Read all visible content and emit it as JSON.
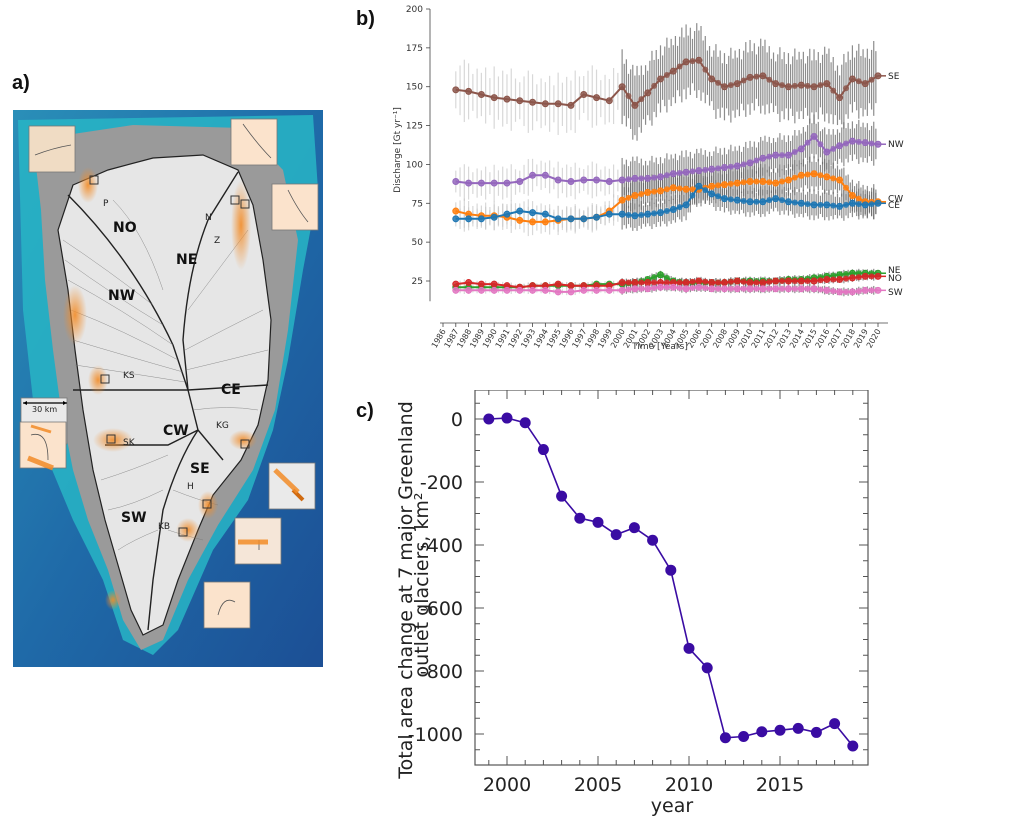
{
  "panels": {
    "a": "a)",
    "b": "b)",
    "c": "c)"
  },
  "map": {
    "regions": [
      "NO",
      "NE",
      "NW",
      "CE",
      "CW",
      "SE",
      "SW"
    ],
    "glaciers": [
      "P",
      "N",
      "Z",
      "KS",
      "SK",
      "KG",
      "H",
      "KB"
    ],
    "scale_bar": "30 km",
    "colors": {
      "ocean_deep": "#1f5a9e",
      "ocean_shelf": "#27b3c4",
      "ice": "#e6e6e6",
      "retreat": "#f28c28"
    }
  },
  "chart_data": [
    {
      "type": "line",
      "title": "",
      "xlabel": "Time [Years]",
      "ylabel": "Discharge [Gt yr⁻¹]",
      "xlim": [
        1986,
        2020
      ],
      "ylim": [
        10,
        200
      ],
      "yticks": [
        25,
        50,
        75,
        100,
        125,
        150,
        175,
        200
      ],
      "xticks": [
        "1986",
        "1987",
        "1988",
        "1989",
        "1990",
        "1991",
        "1992",
        "1993",
        "1994",
        "1995",
        "1996",
        "1997",
        "1998",
        "1999",
        "2000",
        "2001",
        "2002",
        "2003",
        "2004",
        "2005",
        "2006",
        "2007",
        "2008",
        "2009",
        "2010",
        "2011",
        "2012",
        "2013",
        "2014",
        "2015",
        "2016",
        "2017",
        "2018",
        "2019",
        "2020"
      ],
      "legend": "right-end labels",
      "grid": false,
      "series": [
        {
          "name": "SE",
          "color": "#8c564b",
          "x": [
            1987,
            1988,
            1989,
            1990,
            1991,
            1992,
            1993,
            1994,
            1995,
            1996,
            1997,
            1998,
            1999,
            2000,
            2001,
            2002,
            2003,
            2004,
            2005,
            2006,
            2007,
            2008,
            2009,
            2010,
            2011,
            2012,
            2013,
            2014,
            2015,
            2016,
            2017,
            2018,
            2019,
            2020
          ],
          "values": [
            148,
            147,
            145,
            143,
            142,
            141,
            140,
            139,
            139,
            138,
            145,
            143,
            141,
            150,
            138,
            146,
            155,
            160,
            166,
            167,
            155,
            150,
            152,
            156,
            157,
            152,
            150,
            151,
            150,
            152,
            143,
            155,
            152,
            157
          ]
        },
        {
          "name": "NW",
          "color": "#9467bd",
          "x": [
            1987,
            1988,
            1989,
            1990,
            1991,
            1992,
            1993,
            1994,
            1995,
            1996,
            1997,
            1998,
            1999,
            2000,
            2001,
            2002,
            2003,
            2004,
            2005,
            2006,
            2007,
            2008,
            2009,
            2010,
            2011,
            2012,
            2013,
            2014,
            2015,
            2016,
            2017,
            2018,
            2019,
            2020
          ],
          "values": [
            89,
            88,
            88,
            88,
            88,
            89,
            93,
            93,
            90,
            89,
            90,
            90,
            89,
            90,
            91,
            91,
            92,
            94,
            95,
            96,
            97,
            98,
            99,
            101,
            104,
            106,
            106,
            110,
            118,
            108,
            112,
            115,
            114,
            113
          ]
        },
        {
          "name": "CW",
          "color": "#ff7f0e",
          "x": [
            1987,
            1988,
            1989,
            1990,
            1991,
            1992,
            1993,
            1994,
            1995,
            1996,
            1997,
            1998,
            1999,
            2000,
            2001,
            2002,
            2003,
            2004,
            2005,
            2006,
            2007,
            2008,
            2009,
            2010,
            2011,
            2012,
            2013,
            2014,
            2015,
            2016,
            2017,
            2018,
            2019,
            2020
          ],
          "values": [
            70,
            68,
            67,
            67,
            66,
            64,
            63,
            63,
            64,
            65,
            65,
            66,
            70,
            77,
            80,
            82,
            83,
            85,
            84,
            84,
            86,
            87,
            88,
            89,
            89,
            88,
            90,
            93,
            94,
            92,
            90,
            80,
            76,
            76
          ]
        },
        {
          "name": "CE",
          "color": "#1f77b4",
          "x": [
            1987,
            1988,
            1989,
            1990,
            1991,
            1992,
            1993,
            1994,
            1995,
            1996,
            1997,
            1998,
            1999,
            2000,
            2001,
            2002,
            2003,
            2004,
            2005,
            2006,
            2007,
            2008,
            2009,
            2010,
            2011,
            2012,
            2013,
            2014,
            2015,
            2016,
            2017,
            2018,
            2019,
            2020
          ],
          "values": [
            65,
            65,
            65,
            66,
            68,
            70,
            69,
            68,
            65,
            65,
            65,
            66,
            68,
            68,
            67,
            68,
            69,
            71,
            74,
            86,
            81,
            78,
            77,
            76,
            76,
            78,
            76,
            75,
            74,
            74,
            73,
            75,
            74,
            75
          ]
        },
        {
          "name": "NE",
          "color": "#2ca02c",
          "x": [
            1987,
            1988,
            1989,
            1990,
            1991,
            1992,
            1993,
            1994,
            1995,
            1996,
            1997,
            1998,
            1999,
            2000,
            2001,
            2002,
            2003,
            2004,
            2005,
            2006,
            2007,
            2008,
            2009,
            2010,
            2011,
            2012,
            2013,
            2014,
            2015,
            2016,
            2017,
            2018,
            2019,
            2020
          ],
          "values": [
            21,
            21,
            21,
            21,
            21,
            21,
            22,
            22,
            22,
            22,
            22,
            23,
            23,
            23,
            24,
            26,
            29,
            25,
            24,
            24,
            24,
            24,
            25,
            25,
            25,
            25,
            26,
            26,
            27,
            28,
            29,
            30,
            30,
            30
          ]
        },
        {
          "name": "NO",
          "color": "#d62728",
          "x": [
            1987,
            1988,
            1989,
            1990,
            1991,
            1992,
            1993,
            1994,
            1995,
            1996,
            1997,
            1998,
            1999,
            2000,
            2001,
            2002,
            2003,
            2004,
            2005,
            2006,
            2007,
            2008,
            2009,
            2010,
            2011,
            2012,
            2013,
            2014,
            2015,
            2016,
            2017,
            2018,
            2019,
            2020
          ],
          "values": [
            23,
            24,
            23,
            23,
            22,
            21,
            22,
            22,
            23,
            22,
            22,
            22,
            22,
            24,
            24,
            24,
            24,
            24,
            24,
            25,
            24,
            24,
            25,
            24,
            24,
            25,
            25,
            25,
            25,
            26,
            26,
            27,
            28,
            28
          ]
        },
        {
          "name": "SW",
          "color": "#e377c2",
          "x": [
            1987,
            1988,
            1989,
            1990,
            1991,
            1992,
            1993,
            1994,
            1995,
            1996,
            1997,
            1998,
            1999,
            2000,
            2001,
            2002,
            2003,
            2004,
            2005,
            2006,
            2007,
            2008,
            2009,
            2010,
            2011,
            2012,
            2013,
            2014,
            2015,
            2016,
            2017,
            2018,
            2019,
            2020
          ],
          "values": [
            19,
            19,
            19,
            19,
            19,
            19,
            19,
            19,
            18,
            18,
            19,
            19,
            19,
            19,
            20,
            20,
            21,
            21,
            20,
            21,
            20,
            20,
            20,
            20,
            20,
            20,
            20,
            20,
            20,
            19,
            18,
            18,
            19,
            19
          ]
        }
      ]
    },
    {
      "type": "line",
      "title": "",
      "xlabel": "year",
      "ylabel_line1": "Total area change at 7 major Greenland",
      "ylabel_line2": "outlet glaciers, km²",
      "xlim": [
        1998.3,
        2019.8
      ],
      "ylim": [
        -1100,
        100
      ],
      "xticks": [
        "2000",
        "2005",
        "2010",
        "2015"
      ],
      "yticks": [
        "0",
        "-200",
        "-400",
        "-600",
        "-800",
        "-1000"
      ],
      "ytick_values": [
        0,
        -200,
        -400,
        -600,
        -800,
        -1000
      ],
      "xtick_values": [
        2000,
        2005,
        2010,
        2015
      ],
      "grid": false,
      "series": [
        {
          "name": "area change",
          "color": "#3a0ca3",
          "x": [
            1999,
            2000,
            2001,
            2002,
            2003,
            2004,
            2005,
            2006,
            2007,
            2008,
            2009,
            2010,
            2011,
            2012,
            2013,
            2014,
            2015,
            2016,
            2017,
            2018,
            2019
          ],
          "values": [
            0,
            3,
            -12,
            -97,
            -245,
            -315,
            -328,
            -367,
            -345,
            -385,
            -480,
            -728,
            -790,
            -1012,
            -1008,
            -993,
            -988,
            -982,
            -995,
            -967,
            -1038
          ]
        }
      ]
    }
  ]
}
